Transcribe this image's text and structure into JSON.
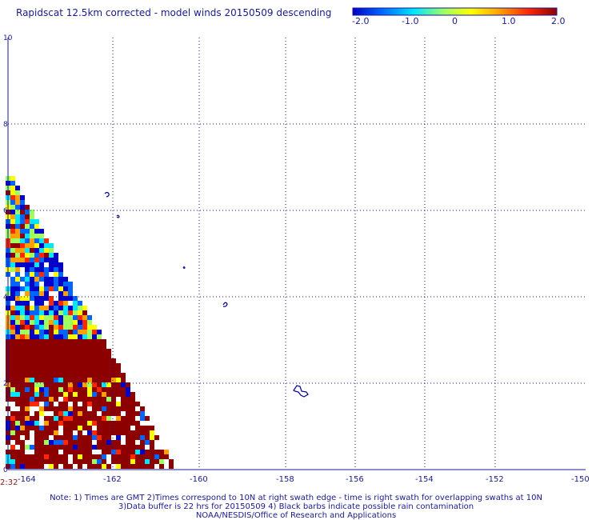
{
  "title": "Rapidscat 12.5km corrected - model winds 20150509 descending",
  "colorbar": {
    "labels": [
      "-2.0",
      "-1.0",
      "0",
      "1.0",
      "2.0"
    ],
    "colors": [
      "#0000c8",
      "#0064ff",
      "#00e6ff",
      "#a0ff60",
      "#ffff00",
      "#ffa000",
      "#ff2800",
      "#8c0000"
    ]
  },
  "map": {
    "lon_labels": [
      "-164",
      "-162",
      "-160",
      "-158",
      "-156",
      "-154",
      "-152",
      "-150"
    ],
    "lat_labels": [
      "0",
      "2",
      "4",
      "6",
      "8",
      "10"
    ],
    "grid_color": "#1a1a8c",
    "land_color": "#00008c"
  },
  "time_label": "2:32",
  "notes": [
    "Note: 1) Times are GMT 2)Times correspond to 10N at right swath edge - time is right swath for overlapping swaths at 10N",
    "3)Data buffer is 22 hrs for 20150509 4) Black barbs indicate possible rain contamination",
    "NOAA/NESDIS/Office of Research and Applications"
  ]
}
